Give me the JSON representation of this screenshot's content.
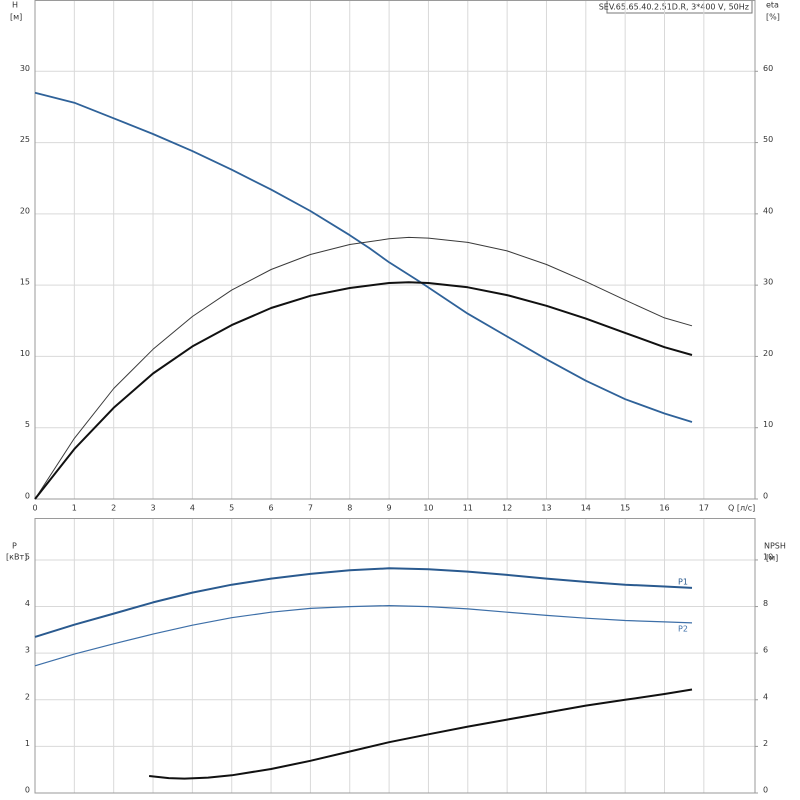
{
  "chart_data": [
    {
      "type": "line",
      "title": "SEV.65.65.40.2.51D.R, 3*400 V, 50Hz",
      "ylabel": "H",
      "ylabel_unit": "[м]",
      "y2label": "eta",
      "y2label_unit": "[%]",
      "xlabel": "Q [л/с]",
      "xlim": [
        0,
        18.3
      ],
      "xticks": [
        0,
        1,
        2,
        3,
        4,
        5,
        6,
        7,
        8,
        9,
        10,
        11,
        12,
        13,
        14,
        15,
        16,
        17
      ],
      "ylim": [
        0,
        35
      ],
      "yticks": [
        0,
        5,
        10,
        15,
        20,
        25,
        30
      ],
      "y2lim": [
        0,
        70
      ],
      "y2ticks": [
        0,
        10,
        20,
        30,
        40,
        50,
        60
      ],
      "grid": true,
      "series": [
        {
          "color": "#2f6299",
          "line_width": 1.8,
          "x": [
            0,
            1,
            2,
            3,
            4,
            5,
            6,
            7,
            8,
            8.5,
            9,
            9.8,
            11,
            12,
            13,
            14,
            15,
            16,
            16.7
          ],
          "values": [
            28.5,
            27.8,
            26.7,
            25.6,
            24.4,
            23.1,
            21.7,
            20.2,
            18.5,
            17.6,
            16.6,
            15.2,
            13.0,
            11.4,
            9.8,
            8.3,
            7.0,
            6.0,
            5.4
          ]
        },
        {
          "color": "#3a3a3a",
          "line_width": 1,
          "axis": "y2",
          "x": [
            0,
            1,
            2,
            3,
            4,
            5,
            6,
            7,
            8,
            9,
            9.5,
            10,
            11,
            12,
            13,
            14,
            15,
            16,
            16.7
          ],
          "values": [
            0,
            8.5,
            15.5,
            21,
            25.6,
            29.3,
            32.2,
            34.3,
            35.7,
            36.5,
            36.7,
            36.6,
            36,
            34.8,
            32.9,
            30.5,
            27.9,
            25.4,
            24.3
          ]
        },
        {
          "color": "#111111",
          "line_width": 2,
          "axis": "y2",
          "x": [
            0,
            1,
            2,
            3,
            4,
            5,
            6,
            7,
            8,
            9,
            9.5,
            10,
            11,
            12,
            13,
            14,
            15,
            16,
            16.7
          ],
          "values": [
            0,
            7,
            12.8,
            17.6,
            21.4,
            24.4,
            26.8,
            28.5,
            29.6,
            30.3,
            30.4,
            30.3,
            29.7,
            28.6,
            27.1,
            25.3,
            23.3,
            21.3,
            20.2
          ]
        }
      ]
    },
    {
      "type": "line",
      "ylabel": "P",
      "ylabel_unit": "[кВт]",
      "y2label": "NPSH",
      "y2label_unit": "[м]",
      "xlim": [
        0,
        18.3
      ],
      "xticks": [
        0,
        1,
        2,
        3,
        4,
        5,
        6,
        7,
        8,
        9,
        10,
        11,
        12,
        13,
        14,
        15,
        16,
        17
      ],
      "ylim": [
        0,
        5.9
      ],
      "yticks": [
        0,
        1,
        2,
        3,
        4,
        5
      ],
      "y2lim": [
        0,
        11.8
      ],
      "y2ticks": [
        0,
        2,
        4,
        6,
        8,
        10
      ],
      "grid": true,
      "series": [
        {
          "name": "P1",
          "color": "#2a5a8f",
          "line_width": 2,
          "x": [
            0,
            1,
            2,
            3,
            4,
            5,
            6,
            7,
            8,
            9,
            10,
            11,
            12,
            13,
            14,
            15,
            16,
            16.7
          ],
          "values": [
            3.35,
            3.61,
            3.85,
            4.09,
            4.3,
            4.47,
            4.6,
            4.7,
            4.78,
            4.82,
            4.8,
            4.75,
            4.68,
            4.6,
            4.53,
            4.47,
            4.43,
            4.4
          ]
        },
        {
          "name": "P2",
          "color": "#3d6fa8",
          "line_width": 1.2,
          "x": [
            0,
            1,
            2,
            3,
            4,
            5,
            6,
            7,
            8,
            9,
            10,
            11,
            12,
            13,
            14,
            15,
            16,
            16.7
          ],
          "values": [
            2.73,
            2.98,
            3.2,
            3.41,
            3.6,
            3.76,
            3.88,
            3.96,
            4.0,
            4.02,
            4.0,
            3.95,
            3.88,
            3.81,
            3.75,
            3.7,
            3.67,
            3.65
          ]
        },
        {
          "color": "#111111",
          "line_width": 2,
          "axis": "y2",
          "x": [
            2.9,
            3.4,
            3.8,
            4.4,
            5,
            6,
            7,
            8,
            9,
            10,
            11,
            12,
            13,
            14,
            15,
            16,
            16.7
          ],
          "values": [
            0.73,
            0.64,
            0.62,
            0.66,
            0.76,
            1.03,
            1.38,
            1.78,
            2.18,
            2.52,
            2.85,
            3.15,
            3.45,
            3.75,
            4.0,
            4.25,
            4.44
          ]
        }
      ]
    }
  ]
}
